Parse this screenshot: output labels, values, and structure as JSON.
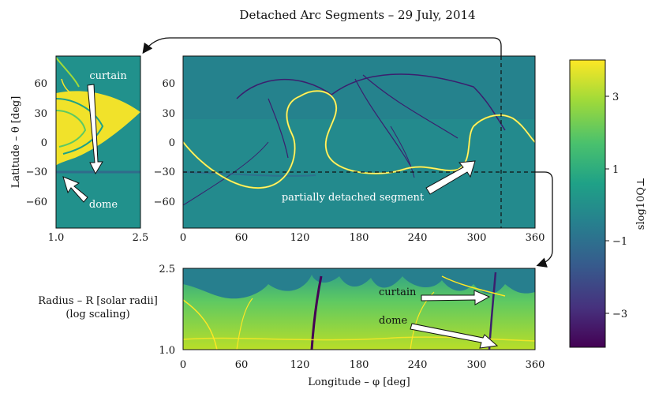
{
  "title": "Detached Arc Segments – 29 July, 2014",
  "colors": {
    "bg": "#21918c",
    "viridis": [
      "#440154",
      "#46327e",
      "#365c8d",
      "#277f8e",
      "#1fa187",
      "#4ac16d",
      "#a0da39",
      "#fde725"
    ],
    "arc": "#fde725",
    "dark_line": "#3b1f6e"
  },
  "panels": {
    "left": {
      "ylabel": "Latitude – θ [deg]",
      "xticks": [
        "1.0",
        "2.5"
      ],
      "yticks": [
        "60",
        "30",
        "0",
        "−30",
        "−60"
      ],
      "annotations": {
        "curtain": "curtain",
        "dome": "dome"
      }
    },
    "main": {
      "xticks": [
        "0",
        "60",
        "120",
        "180",
        "240",
        "300",
        "360"
      ],
      "yticks": [
        "60",
        "30",
        "0",
        "−30",
        "−60"
      ],
      "annotation": "partially detached segment"
    },
    "bottom": {
      "ylabel_line1": "Radius – R [solar radii]",
      "ylabel_line2": "(log scaling)",
      "xlabel": "Longitude – φ [deg]",
      "xticks": [
        "0",
        "60",
        "120",
        "180",
        "240",
        "300",
        "360"
      ],
      "yticks": [
        "2.5",
        "1.0"
      ],
      "annotations": {
        "curtain": "curtain",
        "dome": "dome"
      }
    }
  },
  "colorbar": {
    "label": "slog10Q⊥",
    "ticks": [
      "3",
      "1",
      "−1",
      "−3"
    ]
  },
  "chart_data": [
    {
      "type": "heatmap",
      "name": "latitude-longitude slice at R = 1.0",
      "x_label": "",
      "y_label": "",
      "xlim": [
        0,
        360
      ],
      "ylim": [
        -90,
        90
      ],
      "slice_markers": {
        "longitude": 325,
        "latitude": -30
      }
    },
    {
      "type": "heatmap",
      "name": "latitude-radius slice at φ = 325°",
      "x_label": "",
      "y_label": "Latitude – θ [deg]",
      "xlim": [
        1.0,
        2.5
      ],
      "ylim": [
        -90,
        90
      ]
    },
    {
      "type": "heatmap",
      "name": "longitude-radius slice at θ = −30°",
      "x_label": "Longitude – φ [deg]",
      "y_label": "Radius – R [solar radii]",
      "xlim": [
        0,
        360
      ],
      "ylim": [
        1.0,
        2.5
      ],
      "y_scale": "log"
    },
    {
      "type": "colorbar",
      "label": "slog10Q⊥",
      "range": [
        -4.2,
        4.2
      ],
      "ticks": [
        3,
        1,
        -1,
        -3
      ]
    }
  ]
}
